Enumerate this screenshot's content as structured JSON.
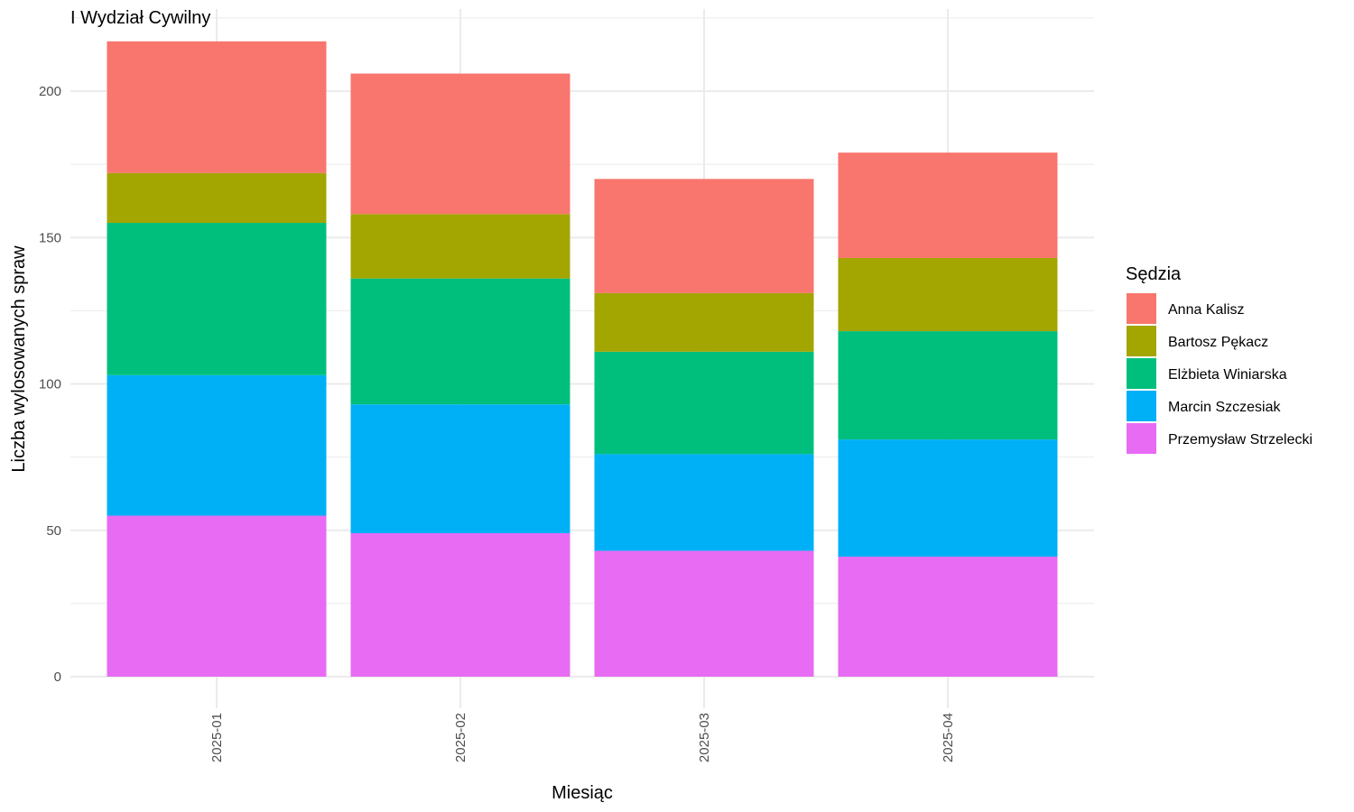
{
  "chart_data": {
    "type": "bar",
    "stacked": true,
    "title": "I Wydział Cywilny",
    "xlabel": "Miesiąc",
    "ylabel": "Liczba wylosowanych spraw",
    "categories": [
      "2025-01",
      "2025-02",
      "2025-03",
      "2025-04"
    ],
    "ylim": [
      0,
      217
    ],
    "yticks": [
      0,
      50,
      100,
      150,
      200
    ],
    "grid": true,
    "legend": {
      "title": "Sędzia",
      "position": "right"
    },
    "series": [
      {
        "name": "Przemysław Strzelecki",
        "color": "#E76BF3",
        "values": [
          55,
          49,
          43,
          41
        ]
      },
      {
        "name": "Marcin Szczesiak",
        "color": "#00B0F6",
        "values": [
          48,
          44,
          33,
          40
        ]
      },
      {
        "name": "Elżbieta Winiarska",
        "color": "#00BF7D",
        "values": [
          52,
          43,
          35,
          37
        ]
      },
      {
        "name": "Bartosz Pękacz",
        "color": "#A3A500",
        "values": [
          17,
          22,
          20,
          25
        ]
      },
      {
        "name": "Anna Kalisz",
        "color": "#F8766D",
        "values": [
          45,
          48,
          39,
          36
        ]
      }
    ],
    "legend_order": [
      "Anna Kalisz",
      "Bartosz Pękacz",
      "Elżbieta Winiarska",
      "Marcin Szczesiak",
      "Przemysław Strzelecki"
    ]
  }
}
